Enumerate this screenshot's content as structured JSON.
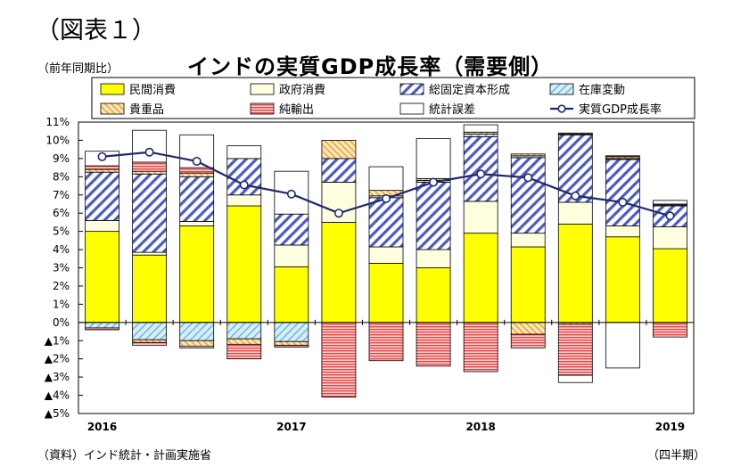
{
  "figure_label": "（図表１）",
  "unit_label": "（前年同期比）",
  "source_label": "（資料）インド統計・計画実施省",
  "period_label": "（四半期）",
  "chart_data": {
    "type": "bar",
    "stacked": true,
    "title": "インドの実質GDP成長率（需要側）",
    "ylim": [
      -5,
      11
    ],
    "y_ticks": [
      -5,
      -4,
      -3,
      -2,
      -1,
      0,
      1,
      2,
      3,
      4,
      5,
      6,
      7,
      8,
      9,
      10,
      11
    ],
    "y_tick_labels": [
      "▲5%",
      "▲4%",
      "▲3%",
      "▲2%",
      "▲1%",
      "0%",
      "1%",
      "2%",
      "3%",
      "4%",
      "5%",
      "6%",
      "7%",
      "8%",
      "9%",
      "10%",
      "11%"
    ],
    "x_labels": [
      {
        "label": "2016",
        "index": 0
      },
      {
        "label": "2017",
        "index": 4
      },
      {
        "label": "2018",
        "index": 8
      },
      {
        "label": "2019",
        "index": 12
      }
    ],
    "quarters": [
      "2016Q1",
      "2016Q2",
      "2016Q3",
      "2016Q4",
      "2017Q1",
      "2017Q2",
      "2017Q3",
      "2017Q4",
      "2018Q1",
      "2018Q2",
      "2018Q3",
      "2018Q4",
      "2019Q1"
    ],
    "series": [
      {
        "name": "民間消費",
        "key": "pc",
        "color": "#ffff00",
        "values": [
          5.0,
          3.7,
          5.3,
          6.4,
          3.05,
          5.5,
          3.25,
          3.0,
          4.9,
          4.15,
          5.4,
          4.7,
          4.05
        ]
      },
      {
        "name": "政府消費",
        "key": "gc",
        "color": "#ffffe0",
        "values": [
          0.6,
          0.15,
          0.25,
          0.6,
          1.2,
          2.2,
          0.9,
          1.0,
          1.75,
          0.75,
          1.2,
          0.6,
          1.2
        ]
      },
      {
        "name": "総固定資本形成",
        "key": "gfcf",
        "color": "#4b5bc4",
        "values": [
          2.65,
          4.3,
          2.45,
          2.0,
          1.7,
          1.3,
          2.7,
          3.7,
          3.55,
          4.15,
          3.7,
          3.65,
          1.15
        ]
      },
      {
        "name": "在庫変動",
        "key": "inv",
        "color": "#9ed3ee",
        "values": [
          -0.3,
          -0.95,
          -1.0,
          -0.9,
          -1.05,
          0,
          0.1,
          0.1,
          0.15,
          0.1,
          0.05,
          0.05,
          0.05
        ]
      },
      {
        "name": "貴重品",
        "key": "val",
        "color": "#f4c26b",
        "values": [
          0.15,
          0.15,
          0.2,
          0.0,
          0.0,
          1.0,
          0.3,
          0.1,
          0.1,
          0.1,
          0.05,
          0.1,
          0.05
        ]
      },
      {
        "name": "純輸出",
        "key": "nx",
        "color": "#ef4b4b",
        "values": [
          0.2,
          0.5,
          0.3,
          0.0,
          0.0,
          -4.1,
          -2.1,
          -2.4,
          -2.7,
          -0.75,
          -2.8,
          0.05,
          -0.8
        ]
      },
      {
        "name": "統計誤差",
        "key": "err",
        "color": "#ffffff",
        "values": [
          0.8,
          1.75,
          1.8,
          0.7,
          2.35,
          0,
          1.3,
          2.2,
          0.4,
          0.0,
          0.0,
          0.0,
          0.2
        ]
      }
    ],
    "negative_extras": [
      {
        "key": "val",
        "values": [
          0,
          -0.15,
          -0.3,
          -0.3,
          -0.2,
          0,
          0,
          0,
          0,
          -0.65,
          -0.1,
          0,
          0
        ]
      },
      {
        "key": "nx",
        "values": [
          -0.1,
          -0.15,
          -0.1,
          -0.8,
          -0.1,
          0,
          0,
          0,
          0,
          0,
          0,
          0,
          0
        ]
      },
      {
        "key": "err",
        "values": [
          0,
          0,
          0,
          0,
          0,
          0,
          0,
          0,
          0,
          0,
          -0.4,
          -2.5,
          0
        ]
      }
    ],
    "line": {
      "name": "実質GDP成長率",
      "color": "#1f2a6b",
      "values": [
        9.1,
        9.35,
        8.85,
        7.55,
        7.05,
        6.0,
        6.8,
        7.7,
        8.15,
        7.95,
        6.95,
        6.6,
        5.85
      ]
    },
    "legend": [
      {
        "label": "民間消費",
        "key": "pc"
      },
      {
        "label": "政府消費",
        "key": "gc"
      },
      {
        "label": "総固定資本形成",
        "key": "gfcf"
      },
      {
        "label": "在庫変動",
        "key": "inv"
      },
      {
        "label": "貴重品",
        "key": "val"
      },
      {
        "label": "純輸出",
        "key": "nx"
      },
      {
        "label": "統計誤差",
        "key": "err"
      },
      {
        "label": "実質GDP成長率",
        "key": "line"
      }
    ]
  }
}
